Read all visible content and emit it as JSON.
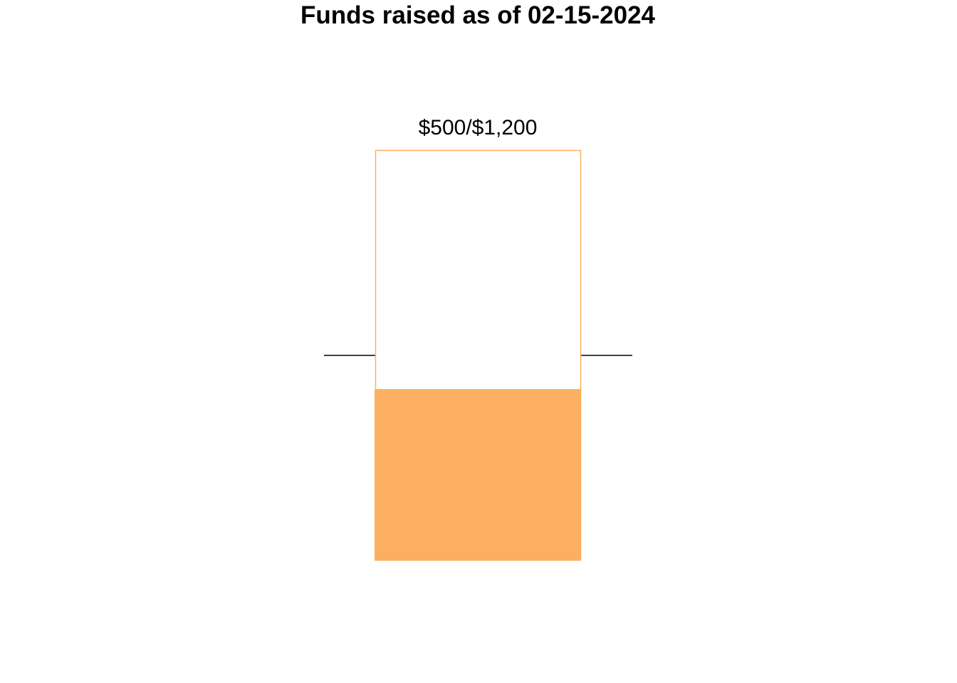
{
  "chart_data": {
    "type": "bar",
    "title": "Funds raised as of 02-15-2024",
    "raised": 500,
    "goal": 1200,
    "label": "$500/$1,200",
    "midline_value": 600,
    "fill_color": "#FCAF60",
    "outline_color": "#FCAF60",
    "midline_color": "#000000",
    "background": "#FFFFFF"
  }
}
